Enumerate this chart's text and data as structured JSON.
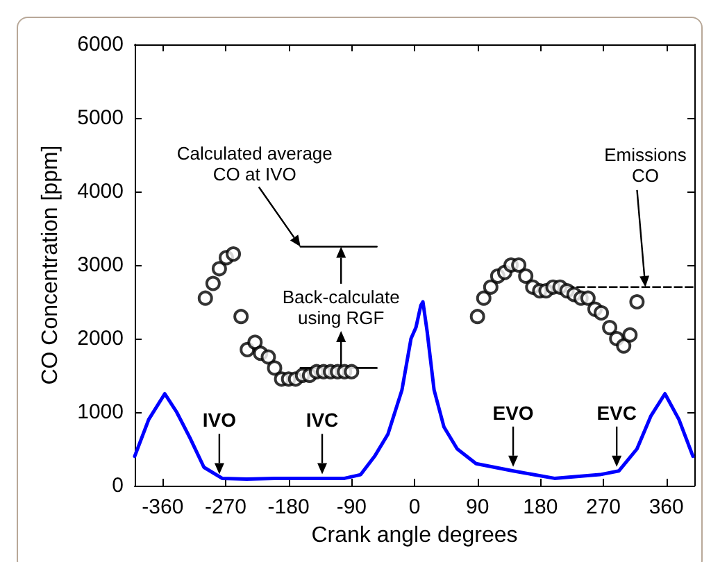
{
  "chart_data": {
    "type": "line",
    "xlabel": "Crank angle degrees",
    "ylabel": "CO Concentration [ppm]",
    "xlim": [
      -400,
      400
    ],
    "xticks": [
      -360,
      -270,
      -180,
      -90,
      0,
      90,
      180,
      270,
      360
    ],
    "ylim": [
      0,
      6000
    ],
    "yticks": [
      0,
      1000,
      2000,
      3000,
      4000,
      5000,
      6000
    ],
    "grid": false,
    "series": [
      {
        "color": "#0000ff",
        "marker": "none",
        "line_style": "solid",
        "x": [
          -400,
          -380,
          -357,
          -340,
          -321,
          -301,
          -275,
          -240,
          -200,
          -150,
          -100,
          -77,
          -57,
          -38,
          -18,
          -5,
          2,
          9,
          12,
          18,
          28,
          42,
          61,
          88,
          141,
          200,
          265,
          292,
          318,
          338,
          358,
          378,
          398
        ],
        "values": [
          400,
          900,
          1250,
          1000,
          650,
          250,
          100,
          90,
          100,
          100,
          100,
          150,
          400,
          700,
          1300,
          2000,
          2150,
          2450,
          2500,
          2100,
          1300,
          800,
          500,
          300,
          200,
          100,
          150,
          200,
          500,
          950,
          1250,
          900,
          400
        ]
      },
      {
        "type": "scatter",
        "color": "#000000",
        "marker": "circle",
        "x": [
          -299,
          -288,
          -279,
          -269,
          -259,
          -248,
          -239,
          -228,
          -220,
          -209,
          -200,
          -190,
          -180,
          -170,
          -160,
          -150,
          -140,
          -130,
          -120,
          -110,
          -100,
          -90,
          90,
          99,
          109,
          119,
          129,
          138,
          149,
          159,
          169,
          179,
          188,
          198,
          208,
          218,
          228,
          238,
          248,
          258,
          267,
          279,
          289,
          299,
          308,
          318
        ],
        "values": [
          2550,
          2750,
          2950,
          3100,
          3150,
          2300,
          1850,
          1950,
          1800,
          1750,
          1600,
          1450,
          1450,
          1450,
          1500,
          1500,
          1550,
          1550,
          1550,
          1550,
          1550,
          1550,
          2300,
          2550,
          2700,
          2850,
          2900,
          3000,
          3000,
          2850,
          2700,
          2650,
          2650,
          2700,
          2700,
          2650,
          2600,
          2550,
          2550,
          2400,
          2350,
          2150,
          2000,
          1900,
          2050,
          2500
        ]
      },
      {
        "type": "line",
        "color": "#000000",
        "marker": "none",
        "line_style": "solid",
        "x": [
          -163,
          -54
        ],
        "values": [
          3250,
          3250
        ]
      },
      {
        "type": "line",
        "color": "#000000",
        "marker": "none",
        "line_style": "solid",
        "x": [
          -163,
          -54
        ],
        "values": [
          1600,
          1600
        ]
      },
      {
        "type": "line",
        "color": "#000000",
        "marker": "none",
        "line_style": "dashed",
        "x": [
          217,
          400
        ],
        "values": [
          2700,
          2700
        ]
      }
    ],
    "annotations": [
      {
        "text": "Calculated average\nCO at IVO",
        "x": -163,
        "y": 3250
      },
      {
        "text": "Back-calculate\nusing RGF",
        "x": -105,
        "y": 3250
      },
      {
        "text": "Emissions\nCO",
        "x": 330,
        "y": 2700
      },
      {
        "text": "IVO",
        "x": -279,
        "y": 100
      },
      {
        "text": "IVC",
        "x": -132,
        "y": 100
      },
      {
        "text": "EVO",
        "x": 141,
        "y": 200
      },
      {
        "text": "EVC",
        "x": 289,
        "y": 200
      }
    ]
  }
}
